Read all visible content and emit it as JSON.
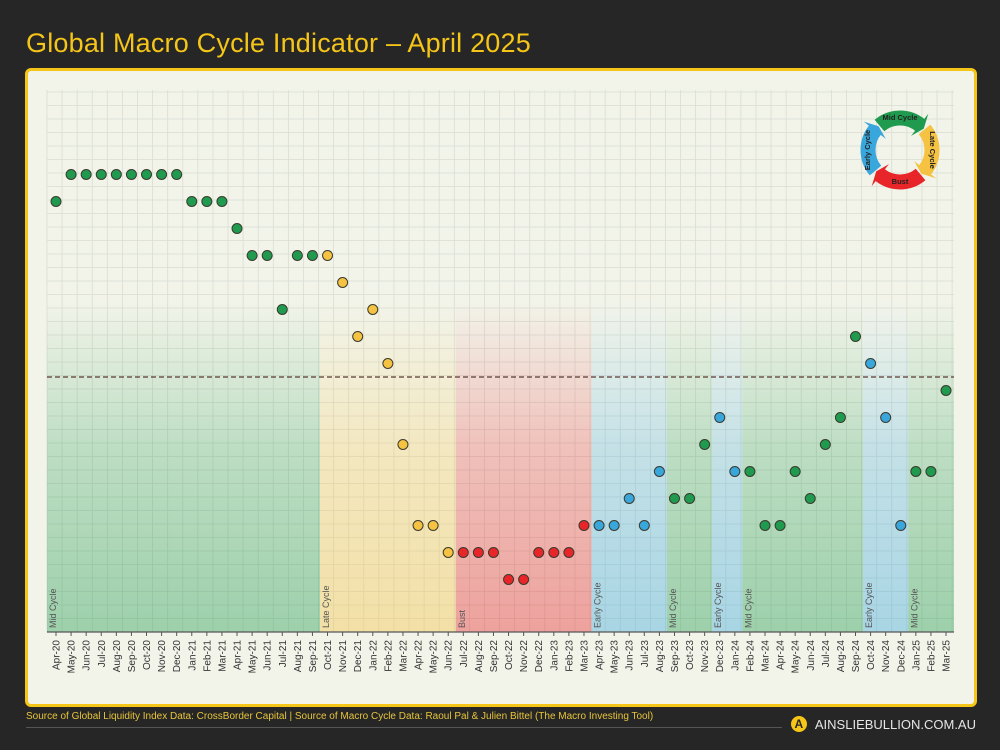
{
  "title": "Global Macro Cycle Indicator – April 2025",
  "footer": {
    "source": "Source of Global Liquidity Index Data: CrossBorder Capital | Source of Macro Cycle Data: Raoul Pal & Julien Bittel (The Macro Investing Tool)",
    "brand": "AINSLIEBULLION.COM.AU",
    "brand_logo_letter": "A"
  },
  "colors": {
    "Mid Cycle": "#1f9a4e",
    "Late Cycle": "#f5c242",
    "Bust": "#e8262a",
    "Early Cycle": "#3aa7dc",
    "accent": "#f5c518",
    "background": "#262626"
  },
  "legend_cycle": [
    "Mid Cycle",
    "Late Cycle",
    "Bust",
    "Early Cycle"
  ],
  "chart_data": {
    "type": "scatter",
    "title": "Global Macro Cycle Indicator – April 2025",
    "xlabel": "",
    "ylabel": "",
    "grid": true,
    "legend": "top-right cycle diagram",
    "reference_line": {
      "y": 0,
      "style": "dashed"
    },
    "categories": [
      "Apr-20",
      "May-20",
      "Jun-20",
      "Jul-20",
      "Aug-20",
      "Sep-20",
      "Oct-20",
      "Nov-20",
      "Dec-20",
      "Jan-21",
      "Feb-21",
      "Mar-21",
      "Apr-21",
      "May-21",
      "Jun-21",
      "Jul-21",
      "Aug-21",
      "Sep-21",
      "Oct-21",
      "Nov-21",
      "Dec-21",
      "Jan-22",
      "Feb-22",
      "Mar-22",
      "Apr-22",
      "May-22",
      "Jun-22",
      "Jul-22",
      "Aug-22",
      "Sep-22",
      "Oct-22",
      "Nov-22",
      "Dec-22",
      "Jan-23",
      "Feb-23",
      "Mar-23",
      "Apr-23",
      "May-23",
      "Jun-23",
      "Jul-23",
      "Aug-23",
      "Sep-23",
      "Oct-23",
      "Nov-23",
      "Dec-23",
      "Jan-24",
      "Feb-24",
      "Mar-24",
      "Apr-24",
      "May-24",
      "Jun-24",
      "Jul-24",
      "Aug-24",
      "Sep-24",
      "Oct-24",
      "Nov-24",
      "Dec-24",
      "Jan-25",
      "Feb-25",
      "Mar-25"
    ],
    "values": [
      13,
      15,
      15,
      15,
      15,
      15,
      15,
      15,
      15,
      13,
      13,
      13,
      11,
      9,
      9,
      5,
      9,
      9,
      9,
      7,
      3,
      5,
      1,
      -5,
      -11,
      -11,
      -13,
      -13,
      -13,
      -13,
      -15,
      -15,
      -13,
      -13,
      -13,
      -11,
      -11,
      -11,
      -9,
      -11,
      -7,
      -9,
      -9,
      -5,
      -3,
      -7,
      -7,
      -11,
      -11,
      -7,
      -9,
      -5,
      -3,
      3,
      1,
      -3,
      -11,
      -7,
      -7,
      -1
    ],
    "phase": [
      "Mid Cycle",
      "Mid Cycle",
      "Mid Cycle",
      "Mid Cycle",
      "Mid Cycle",
      "Mid Cycle",
      "Mid Cycle",
      "Mid Cycle",
      "Mid Cycle",
      "Mid Cycle",
      "Mid Cycle",
      "Mid Cycle",
      "Mid Cycle",
      "Mid Cycle",
      "Mid Cycle",
      "Mid Cycle",
      "Mid Cycle",
      "Mid Cycle",
      "Late Cycle",
      "Late Cycle",
      "Late Cycle",
      "Late Cycle",
      "Late Cycle",
      "Late Cycle",
      "Late Cycle",
      "Late Cycle",
      "Late Cycle",
      "Bust",
      "Bust",
      "Bust",
      "Bust",
      "Bust",
      "Bust",
      "Bust",
      "Bust",
      "Bust",
      "Early Cycle",
      "Early Cycle",
      "Early Cycle",
      "Early Cycle",
      "Early Cycle",
      "Mid Cycle",
      "Mid Cycle",
      "Mid Cycle",
      "Early Cycle",
      "Early Cycle",
      "Mid Cycle",
      "Mid Cycle",
      "Mid Cycle",
      "Mid Cycle",
      "Mid Cycle",
      "Mid Cycle",
      "Mid Cycle",
      "Mid Cycle",
      "Early Cycle",
      "Early Cycle",
      "Early Cycle",
      "Mid Cycle",
      "Mid Cycle",
      "Mid Cycle"
    ],
    "regions": [
      {
        "label": "Mid Cycle",
        "from": "Apr-20",
        "to": "Sep-21"
      },
      {
        "label": "Late Cycle",
        "from": "Oct-21",
        "to": "Jun-22"
      },
      {
        "label": "Bust",
        "from": "Jul-22",
        "to": "Mar-23"
      },
      {
        "label": "Early Cycle",
        "from": "Apr-23",
        "to": "Aug-23"
      },
      {
        "label": "Mid Cycle",
        "from": "Sep-23",
        "to": "Nov-23"
      },
      {
        "label": "Early Cycle",
        "from": "Dec-23",
        "to": "Jan-24"
      },
      {
        "label": "Mid Cycle",
        "from": "Feb-24",
        "to": "Sep-24"
      },
      {
        "label": "Early Cycle",
        "from": "Oct-24",
        "to": "Dec-24"
      },
      {
        "label": "Mid Cycle",
        "from": "Jan-25",
        "to": "Mar-25"
      }
    ]
  }
}
